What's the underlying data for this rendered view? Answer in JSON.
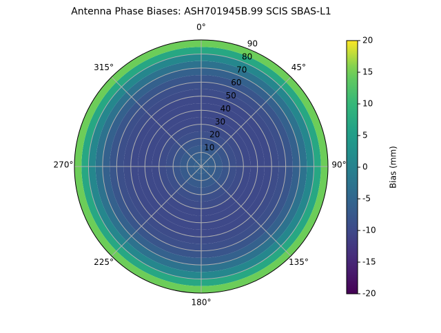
{
  "chart_data": {
    "type": "polar-heatmap",
    "title": "Antenna Phase Biases: ASH701945B.99   SCIS SBAS-L1",
    "bins": [
      0,
      5,
      10,
      15,
      20,
      25,
      30,
      35,
      40,
      45,
      50,
      55,
      60,
      65,
      70,
      75,
      80,
      85,
      90
    ],
    "values": [
      -6,
      -6.5,
      -7,
      -8,
      -9,
      -9.5,
      -10,
      -10,
      -10,
      -10,
      -9.5,
      -9,
      -8,
      -6,
      -3,
      1,
      7,
      15,
      18
    ],
    "rlim": [
      0,
      90
    ],
    "rticks": [
      10,
      20,
      30,
      40,
      50,
      60,
      70,
      80,
      90
    ],
    "thetaticks": [
      {
        "value": 0,
        "label": "0°"
      },
      {
        "value": 45,
        "label": "45°"
      },
      {
        "value": 90,
        "label": "90°"
      },
      {
        "value": 135,
        "label": "135°"
      },
      {
        "value": 180,
        "label": "180°"
      },
      {
        "value": 225,
        "label": "225°"
      },
      {
        "value": 270,
        "label": "270°"
      },
      {
        "value": 315,
        "label": "315°"
      }
    ],
    "theta_zero": "N",
    "theta_direction": "clockwise",
    "grid": true,
    "colormap": "viridis",
    "colorbar": {
      "label": "Bias (mm)",
      "lim": [
        -20,
        20
      ],
      "ticks": [
        -20,
        -15,
        -10,
        -5,
        0,
        5,
        10,
        15,
        20
      ]
    }
  }
}
